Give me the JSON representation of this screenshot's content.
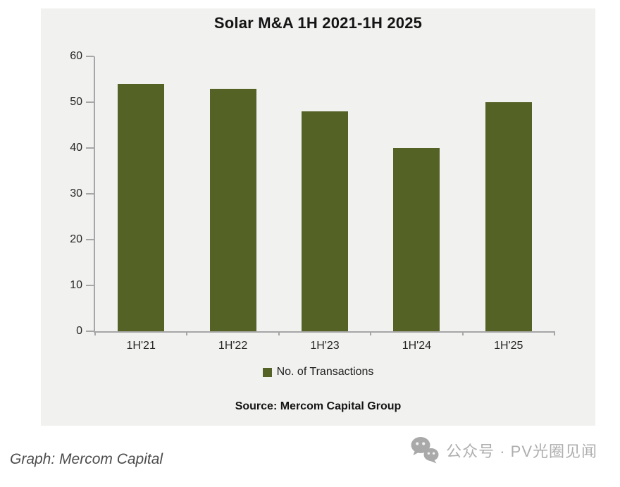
{
  "chart_data": {
    "type": "bar",
    "title": "Solar M&A 1H 2021-1H 2025",
    "categories": [
      "1H'21",
      "1H'22",
      "1H'23",
      "1H'24",
      "1H'25"
    ],
    "series": [
      {
        "name": "No. of Transactions",
        "values": [
          54,
          53,
          48,
          40,
          50
        ]
      }
    ],
    "xlabel": "",
    "ylabel": "",
    "ylim": [
      0,
      60
    ],
    "yticks": [
      0,
      10,
      20,
      30,
      40,
      50,
      60
    ],
    "grid": false,
    "legend_position": "bottom",
    "source": "Source: Mercom Capital Group"
  },
  "colors": {
    "bar": "#556226",
    "panel_background": "#f1f2ef",
    "axis": "#a6a6a6",
    "watermark_gray": "#aeaeae"
  },
  "footer": {
    "credit": "Graph: Mercom Capital",
    "watermark": {
      "icon": "wechat-icon",
      "text": "公众号 · PV光圈见闻"
    }
  }
}
